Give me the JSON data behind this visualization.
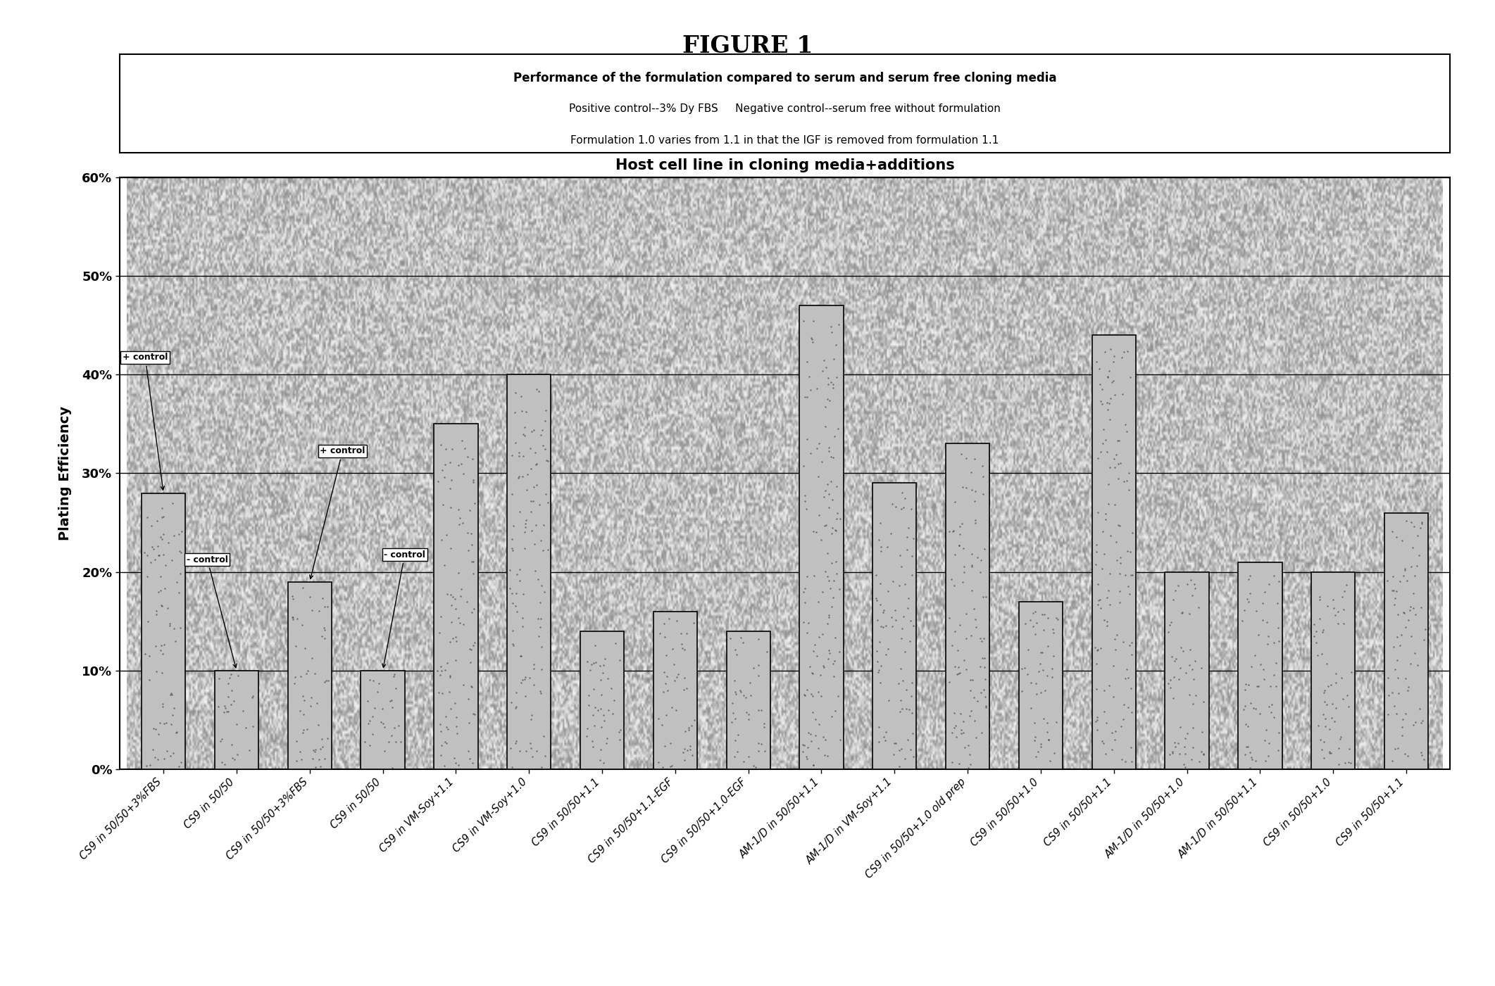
{
  "title_main": "FIGURE 1",
  "chart_title_line1": "Performance of the formulation compared to serum and serum free cloning media",
  "chart_title_line2": "Positive control--3% Dy FBS     Negative control--serum free without formulation",
  "chart_title_line3": "Formulation 1.0 varies from 1.1 in that the IGF is removed from formulation 1.1",
  "xlabel": "Host cell line in cloning media+additions",
  "ylabel": "Plating Efficiency",
  "categories": [
    "CS9 in 50/50+3%FBS",
    "CS9 in 50/50",
    "CS9 in 50/50+3%FBS",
    "CS9 in 50/50",
    "CS9 in VM-Soy+1.1",
    "CS9 in VM-Soy+1.0",
    "CS9 in 50/50+1.1",
    "CS9 in 50/50+1.1-EGF",
    "CS9 in 50/50+1.0-EGF",
    "AM-1/D in 50/50+1.1",
    "AM-1/D in VM-Soy+1.1",
    "CS9 in 50/50+1.0 old prep",
    "CS9 in 50/50+1.0",
    "CS9 in 50/50+1.1",
    "AM-1/D in 50/50+1.0",
    "AM-1/D in 50/50+1.1",
    "CS9 in 50/50+1.0",
    "CS9 in 50/50+1.1"
  ],
  "values": [
    0.28,
    0.1,
    0.19,
    0.1,
    0.35,
    0.4,
    0.14,
    0.16,
    0.14,
    0.47,
    0.29,
    0.33,
    0.17,
    0.44,
    0.2,
    0.21,
    0.2,
    0.26
  ],
  "bar_color": "#c0c0c0",
  "bar_edge_color": "#000000",
  "background_color": "#ffffff",
  "plot_bg_color": "#b8b8b8",
  "ylim": [
    0.0,
    0.6
  ],
  "yticks": [
    0.0,
    0.1,
    0.2,
    0.3,
    0.4,
    0.5,
    0.6
  ],
  "ytick_labels": [
    "0%",
    "10%",
    "20%",
    "30%",
    "40%",
    "50%",
    "60%"
  ]
}
